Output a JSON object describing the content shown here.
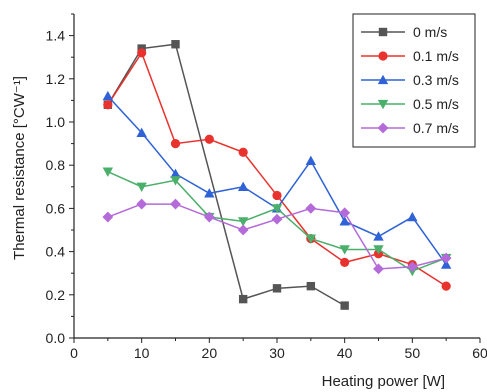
{
  "chart_data": {
    "type": "line",
    "xlabel": "Heating power [W]",
    "ylabel": "Thermal resistance [°CW⁻¹]",
    "xlim": [
      0,
      60
    ],
    "ylim": [
      0,
      1.5
    ],
    "xticks": [
      0,
      10,
      20,
      30,
      40,
      50,
      60
    ],
    "yticks": [
      0.0,
      0.2,
      0.4,
      0.6,
      0.8,
      1.0,
      1.2,
      1.4
    ],
    "xtick_labels": [
      "0",
      "10",
      "20",
      "30",
      "40",
      "50",
      "60"
    ],
    "ytick_labels": [
      "0.0",
      "0.2",
      "0.4",
      "0.6",
      "0.8",
      "1.0",
      "1.2",
      "1.4"
    ],
    "grid": false,
    "legend_position": "top-right",
    "series": [
      {
        "name": "0 m/s",
        "color": "#555555",
        "marker": "square",
        "x": [
          5,
          10,
          15,
          25,
          30,
          35,
          40
        ],
        "y": [
          1.08,
          1.34,
          1.36,
          0.18,
          0.23,
          0.24,
          0.15
        ]
      },
      {
        "name": "0.1 m/s",
        "color": "#e8322e",
        "marker": "circle",
        "x": [
          5,
          10,
          15,
          20,
          25,
          30,
          35,
          40,
          45,
          50,
          55
        ],
        "y": [
          1.08,
          1.32,
          0.9,
          0.92,
          0.86,
          0.66,
          0.46,
          0.35,
          0.39,
          0.34,
          0.24
        ]
      },
      {
        "name": "0.3 m/s",
        "color": "#2e62d6",
        "marker": "triangle-up",
        "x": [
          5,
          10,
          15,
          20,
          25,
          30,
          35,
          40,
          45,
          50,
          55
        ],
        "y": [
          1.12,
          0.95,
          0.76,
          0.67,
          0.7,
          0.6,
          0.82,
          0.54,
          0.47,
          0.56,
          0.34
        ]
      },
      {
        "name": "0.5 m/s",
        "color": "#4aaf6a",
        "marker": "triangle-down",
        "x": [
          5,
          10,
          15,
          20,
          25,
          30,
          35,
          40,
          45,
          50,
          55
        ],
        "y": [
          0.77,
          0.7,
          0.73,
          0.56,
          0.54,
          0.6,
          0.46,
          0.41,
          0.41,
          0.31,
          0.37
        ]
      },
      {
        "name": "0.7 m/s",
        "color": "#b46ad8",
        "marker": "diamond",
        "x": [
          5,
          10,
          15,
          20,
          25,
          30,
          35,
          40,
          45,
          50,
          55
        ],
        "y": [
          0.56,
          0.62,
          0.62,
          0.56,
          0.5,
          0.55,
          0.6,
          0.58,
          0.32,
          0.33,
          0.37
        ]
      }
    ]
  }
}
